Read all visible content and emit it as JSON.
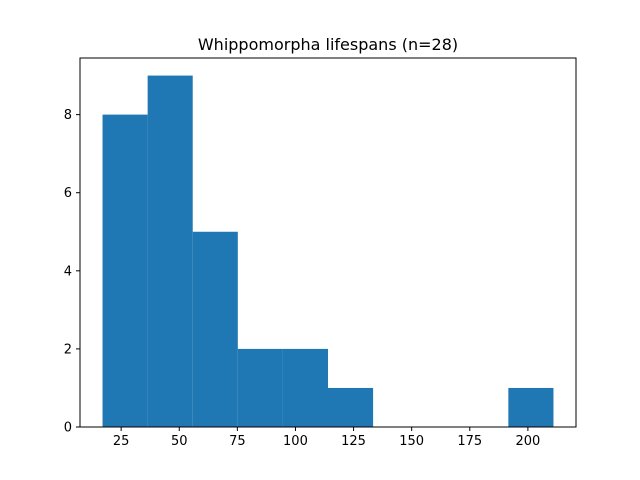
{
  "chart_data": {
    "type": "bar",
    "title": "Whippomorpha lifespans (n=28)",
    "xlabel": "",
    "ylabel": "",
    "bin_edges": [
      17.0,
      36.4,
      55.8,
      75.2,
      94.6,
      114.0,
      133.4,
      152.8,
      172.2,
      191.6,
      211.0
    ],
    "values": [
      8,
      9,
      5,
      2,
      2,
      1,
      0,
      0,
      0,
      1
    ],
    "xlim": [
      7.3,
      220.7
    ],
    "ylim": [
      0,
      9.45
    ],
    "xticks": [
      25,
      50,
      75,
      100,
      125,
      150,
      175,
      200
    ],
    "yticks": [
      0,
      2,
      4,
      6,
      8
    ],
    "bar_color": "#1f77b4",
    "grid": false
  }
}
